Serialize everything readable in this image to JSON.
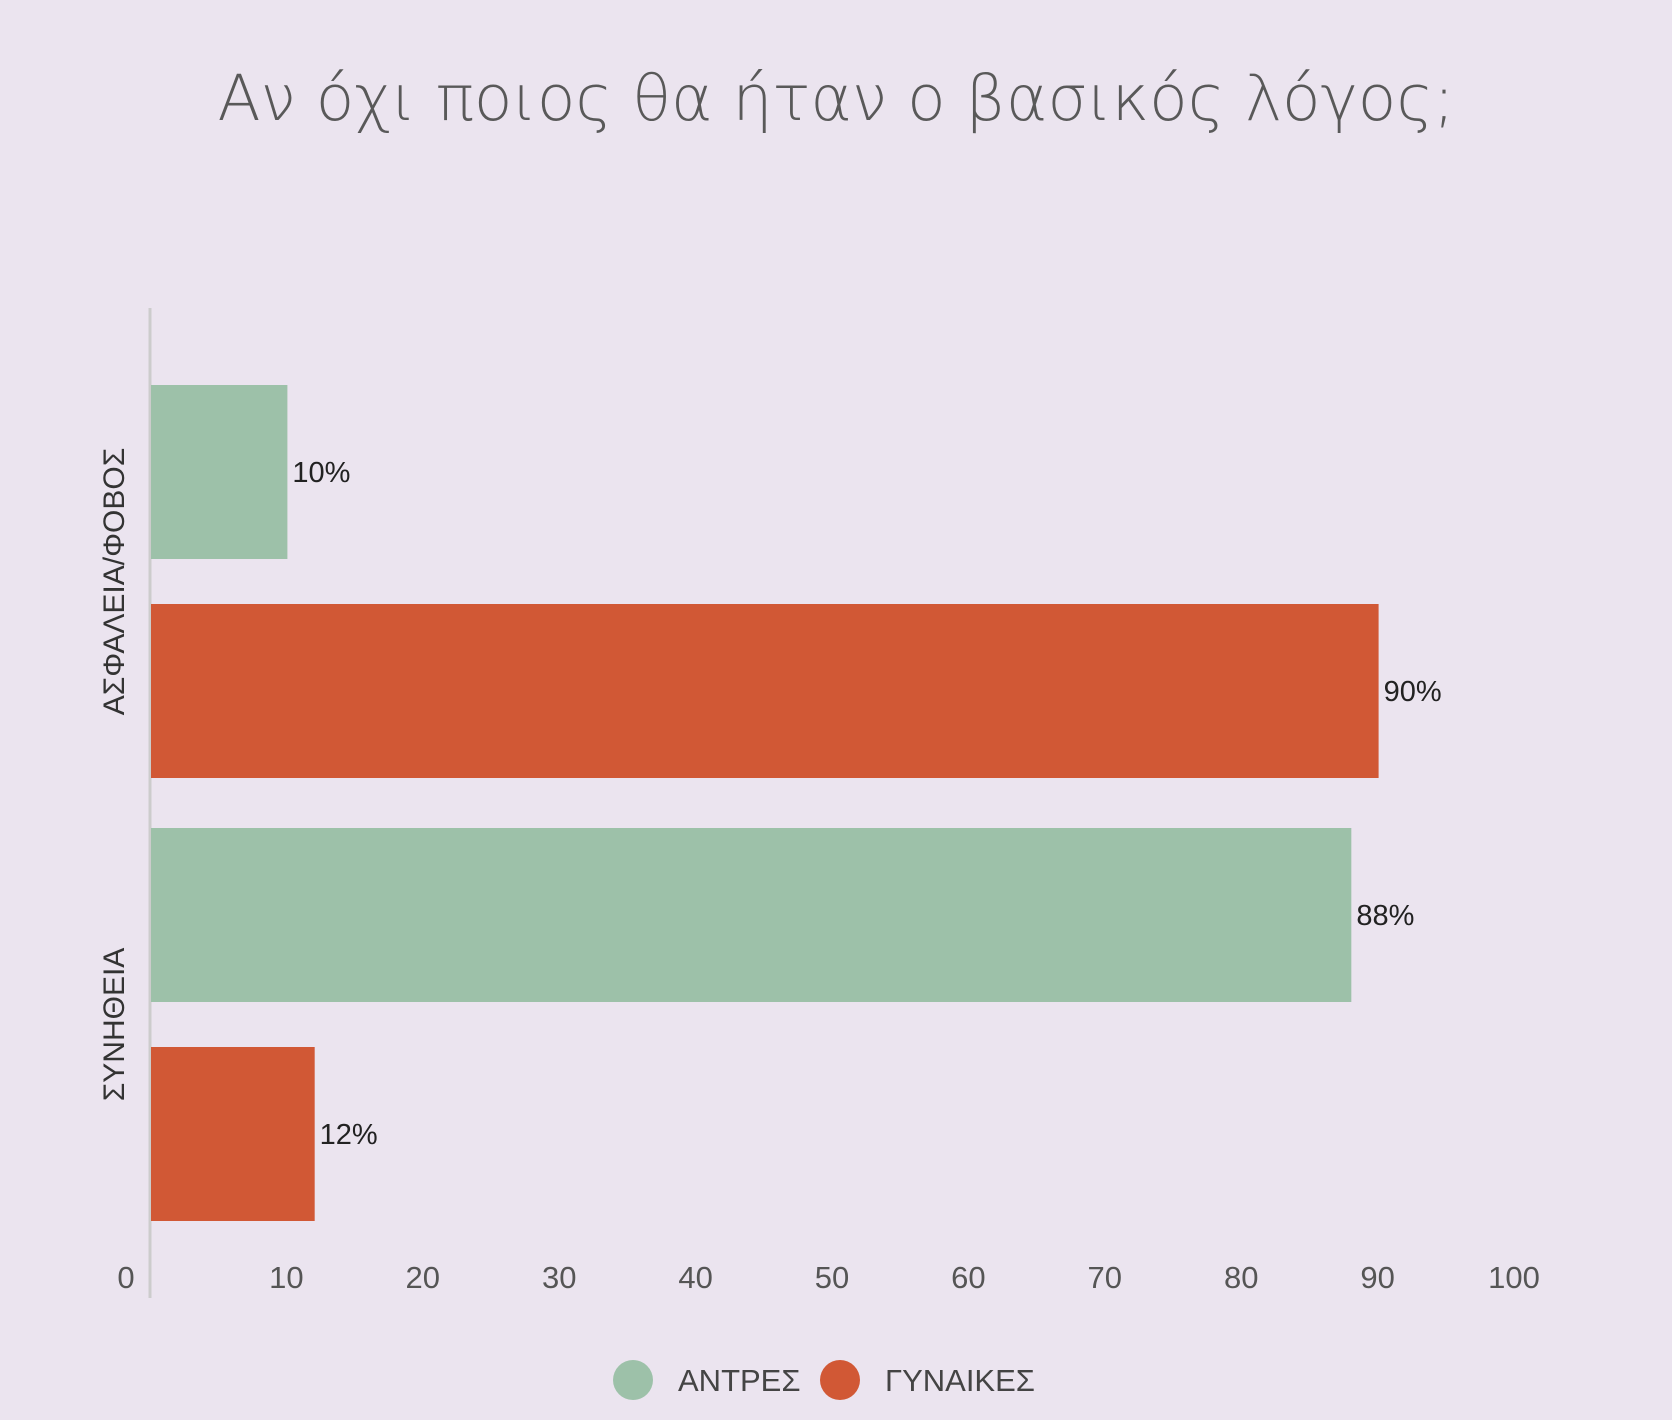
{
  "chart_data": {
    "type": "bar",
    "orientation": "horizontal",
    "title": "Αν όχι ποιος θα ήταν ο βασικός λόγος;",
    "categories": [
      "ΑΣΦΑΛΕΙΑ/ΦΟΒΟΣ",
      "ΣΥΝΗΘΕΙΑ"
    ],
    "series": [
      {
        "name": "ΑΝΤΡΕΣ",
        "color": "#9dc1a9",
        "values": [
          10,
          88
        ],
        "labels": [
          "10%",
          "88%"
        ]
      },
      {
        "name": "ΓΥΝΑΙΚΕΣ",
        "color": "#d15835",
        "values": [
          90,
          12
        ],
        "labels": [
          "90%",
          "12%"
        ]
      }
    ],
    "xlim": [
      0,
      100
    ],
    "xticks": [
      "0",
      "10",
      "20",
      "30",
      "40",
      "50",
      "60",
      "70",
      "80",
      "90",
      "100"
    ],
    "grid": false,
    "legend_position": "bottom"
  }
}
